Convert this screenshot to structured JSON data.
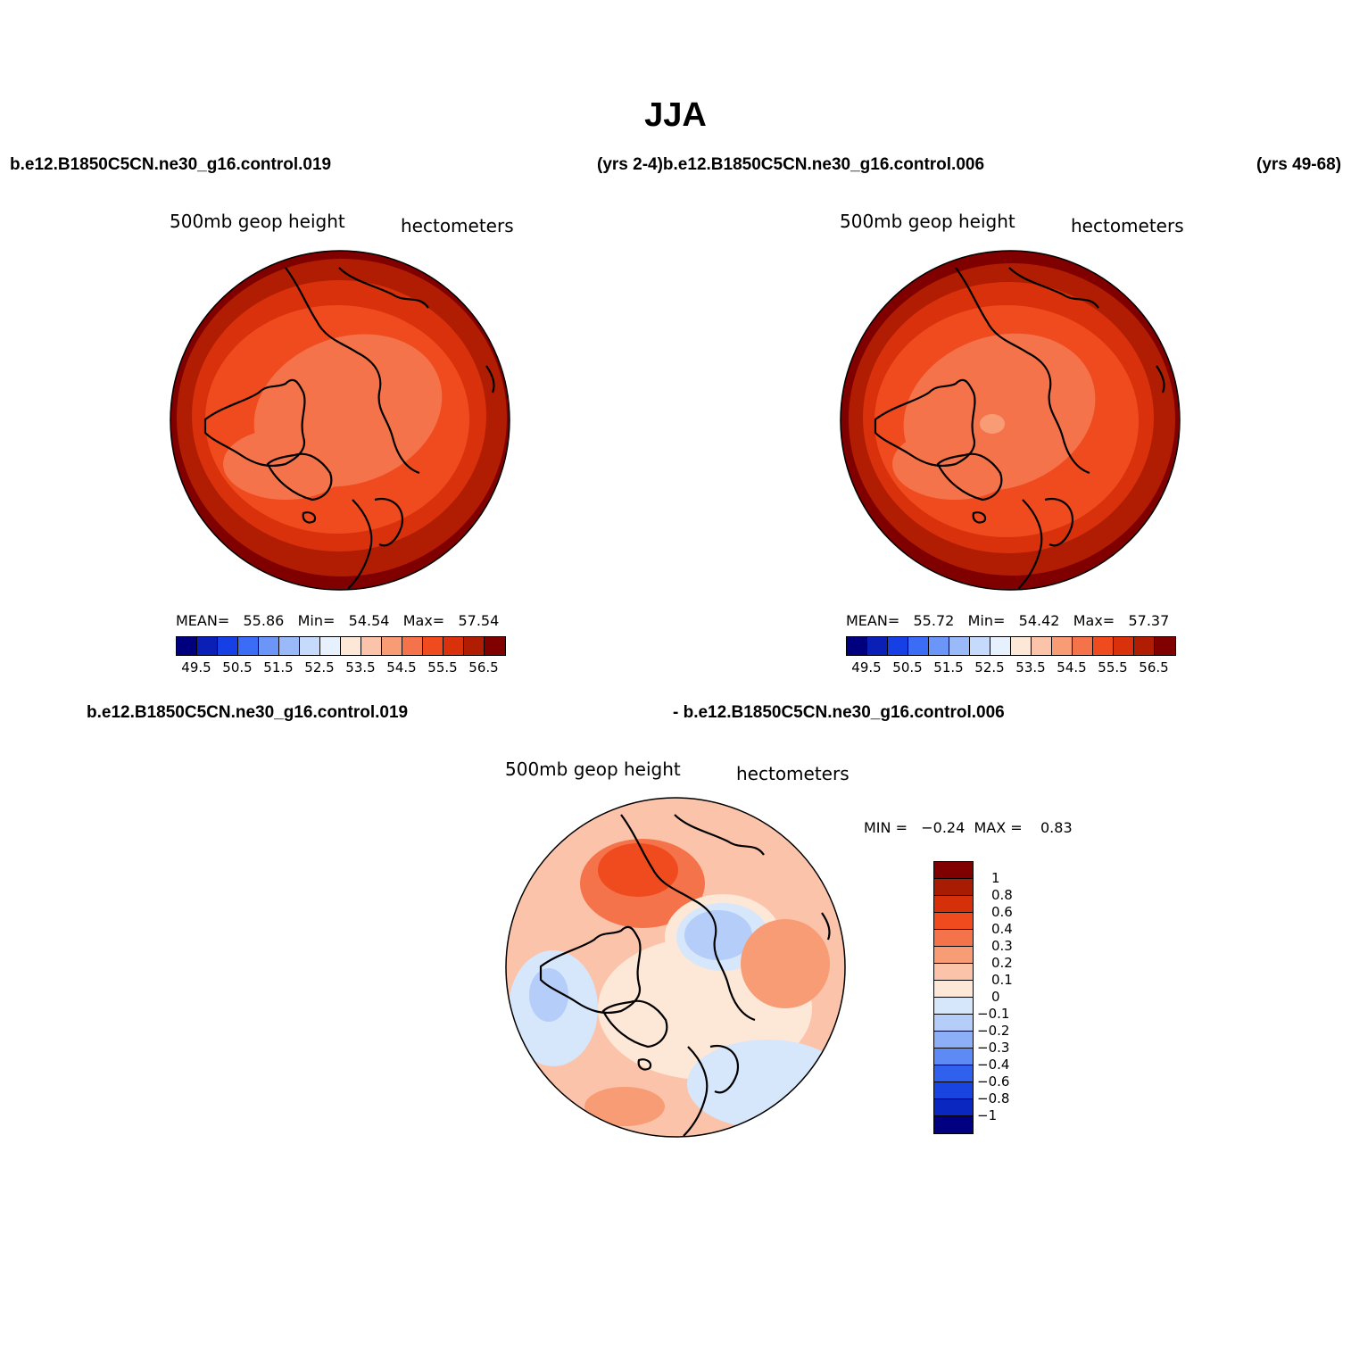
{
  "title": "JJA",
  "header": {
    "case_left": "b.e12.B1850C5CN.ne30_g16.control.019",
    "case_mid": "(yrs 2-4)b.e12.B1850C5CN.ne30_g16.control.006",
    "case_right": "(yrs 49-68)"
  },
  "diff_header": {
    "case_a": "b.e12.B1850C5CN.ne30_g16.control.019",
    "case_b": "- b.e12.B1850C5CN.ne30_g16.control.006"
  },
  "panels": [
    {
      "variable": "500mb geop height",
      "units": "hectometers",
      "stats": {
        "mean_label": "MEAN=",
        "mean": "55.86",
        "min_label": "Min=",
        "min": "54.54",
        "max_label": "Max=",
        "max": "57.54"
      }
    },
    {
      "variable": "500mb geop height",
      "units": "hectometers",
      "stats": {
        "mean_label": "MEAN=",
        "mean": "55.72",
        "min_label": "Min=",
        "min": "54.42",
        "max_label": "Max=",
        "max": "57.37"
      }
    }
  ],
  "diff_panel": {
    "variable": "500mb geop height",
    "units": "hectometers",
    "stats": {
      "min_label": "MIN =",
      "min": "−0.24",
      "max_label": "MAX =",
      "max": "0.83"
    }
  },
  "colorbar_abs": {
    "colors": [
      "#00007f",
      "#0a1fb5",
      "#1640e6",
      "#3b6cf5",
      "#6b96f7",
      "#9ab9f9",
      "#c6dbfb",
      "#e7f1fd",
      "#fde7d7",
      "#fbc4aa",
      "#f89c76",
      "#f5734a",
      "#f04b1e",
      "#d9310b",
      "#b01d03",
      "#800000"
    ],
    "labels": [
      "49.5",
      "50.5",
      "51.5",
      "52.5",
      "53.5",
      "54.5",
      "55.5",
      "56.5"
    ]
  },
  "colorbar_diff": {
    "colors": [
      "#800000",
      "#a81c04",
      "#d6300b",
      "#f04b1e",
      "#f5734a",
      "#f89c76",
      "#fbc4aa",
      "#fde7d7",
      "#d6e6fb",
      "#b5cdf9",
      "#8cafF7",
      "#5d8af4",
      "#3060ee",
      "#1a44e0",
      "#0a27bf",
      "#000080"
    ],
    "labels": [
      "1",
      "0.8",
      "0.6",
      "0.4",
      "0.3",
      "0.2",
      "0.1",
      "0",
      "−0.1",
      "−0.2",
      "−0.3",
      "−0.4",
      "−0.6",
      "−0.8",
      "−1"
    ]
  }
}
